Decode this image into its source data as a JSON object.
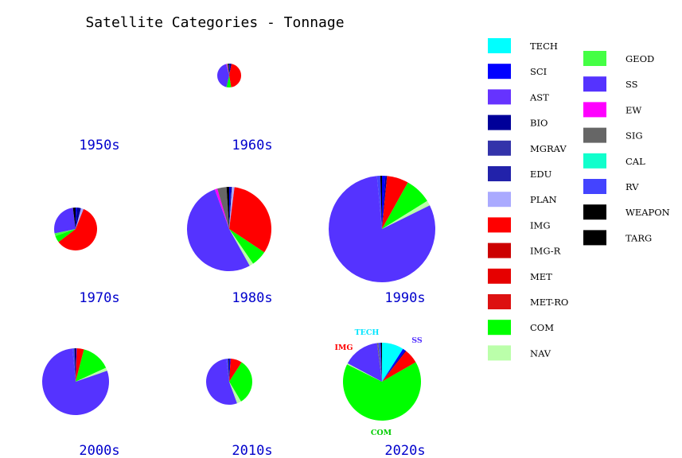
{
  "chart_data": {
    "type": "pie",
    "title": "Satellite Categories - Tonnage",
    "categories": [
      "TECH",
      "SCI",
      "AST",
      "BIO",
      "MGRAV",
      "EDU",
      "PLAN",
      "IMG",
      "IMG-R",
      "MET",
      "MET-RO",
      "COM",
      "NAV",
      "GEOD",
      "SS",
      "EW",
      "SIG",
      "CAL",
      "RV",
      "WEAPON",
      "TARG"
    ],
    "colors": [
      "#00ffff",
      "#0000ff",
      "#6633ff",
      "#000099",
      "#3333aa",
      "#2222aa",
      "#aaaaff",
      "#ff0000",
      "#cc0000",
      "#e60000",
      "#dd1111",
      "#00ff00",
      "#bbffaa",
      "#44ff44",
      "#5533ff",
      "#ff00ff",
      "#666666",
      "#11ffcc",
      "#4444ff",
      "#000000",
      "#000000"
    ],
    "legend_placement": "right",
    "pies": [
      {
        "decade": "1950s",
        "values": []
      },
      {
        "decade": "1960s",
        "values": [
          0,
          1,
          0,
          2,
          0,
          0,
          0,
          42,
          0,
          0,
          0,
          6,
          0,
          0,
          40,
          1,
          2,
          0,
          0,
          1,
          0
        ]
      },
      {
        "decade": "1970s",
        "values": [
          0,
          1,
          0,
          3,
          0,
          0,
          2,
          58,
          0,
          0,
          0,
          5,
          0,
          2,
          26,
          0,
          0,
          0,
          0,
          2,
          0
        ]
      },
      {
        "decade": "1980s",
        "values": [
          0,
          0.5,
          0,
          0.5,
          0,
          0,
          1,
          32,
          0,
          0,
          0,
          6,
          1.5,
          0,
          52,
          1,
          3.5,
          0,
          0,
          1,
          0
        ]
      },
      {
        "decade": "1990s",
        "values": [
          0,
          1,
          0,
          0.5,
          0,
          0,
          0,
          6.5,
          0,
          0,
          0,
          8,
          1.5,
          0,
          80,
          0,
          0,
          0,
          1,
          0.5,
          0
        ]
      },
      {
        "decade": "2000s",
        "values": [
          0,
          0.5,
          0,
          0,
          0,
          0,
          0,
          3.5,
          0,
          0,
          0,
          14,
          1.5,
          0,
          78,
          0,
          0,
          0,
          1,
          0.5,
          0
        ]
      },
      {
        "decade": "2010s",
        "values": [
          0,
          1,
          0,
          0,
          0,
          0,
          0,
          8,
          0,
          0,
          0,
          32,
          3,
          0,
          53,
          0,
          0,
          0,
          1.5,
          0.5,
          0
        ]
      },
      {
        "decade": "2020s",
        "values": [
          9,
          1,
          0,
          0.5,
          0,
          0,
          0,
          6,
          0,
          0,
          0,
          65,
          0.5,
          0,
          15,
          0,
          0.5,
          0,
          1,
          0.5,
          0
        ]
      }
    ],
    "slice_labels_2020s": [
      {
        "text": "TECH",
        "color": "#00e5ff"
      },
      {
        "text": "SS",
        "color": "#5533ff"
      },
      {
        "text": "IMG",
        "color": "#ff0000"
      },
      {
        "text": "COM",
        "color": "#00cc00"
      }
    ]
  }
}
